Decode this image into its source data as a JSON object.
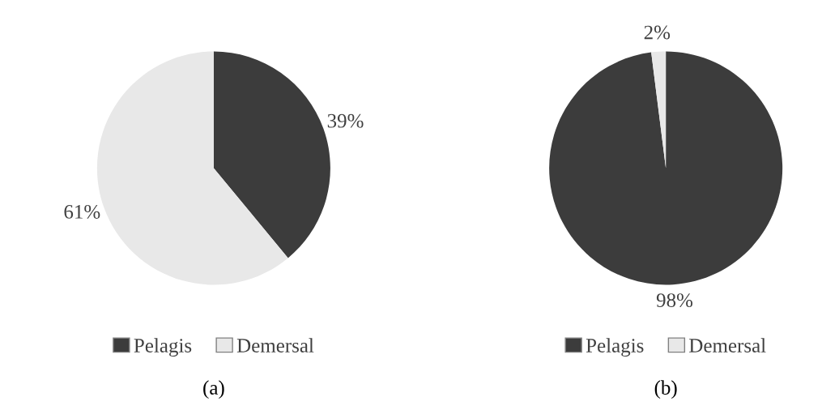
{
  "chart_data": [
    {
      "type": "pie",
      "categories": [
        "Pelagis",
        "Demersal"
      ],
      "values": [
        39,
        61
      ],
      "value_labels": [
        "39%",
        "61%"
      ],
      "colors": [
        "#3c3c3c",
        "#e8e8e8"
      ],
      "legend": "bottom",
      "annotations": [
        "(a)"
      ]
    },
    {
      "type": "pie",
      "categories": [
        "Pelagis",
        "Demersal"
      ],
      "values": [
        98,
        2
      ],
      "value_labels": [
        "98%",
        "2%"
      ],
      "colors": [
        "#3c3c3c",
        "#e8e8e8"
      ],
      "legend": "bottom",
      "annotations": [
        "(b)"
      ]
    }
  ]
}
